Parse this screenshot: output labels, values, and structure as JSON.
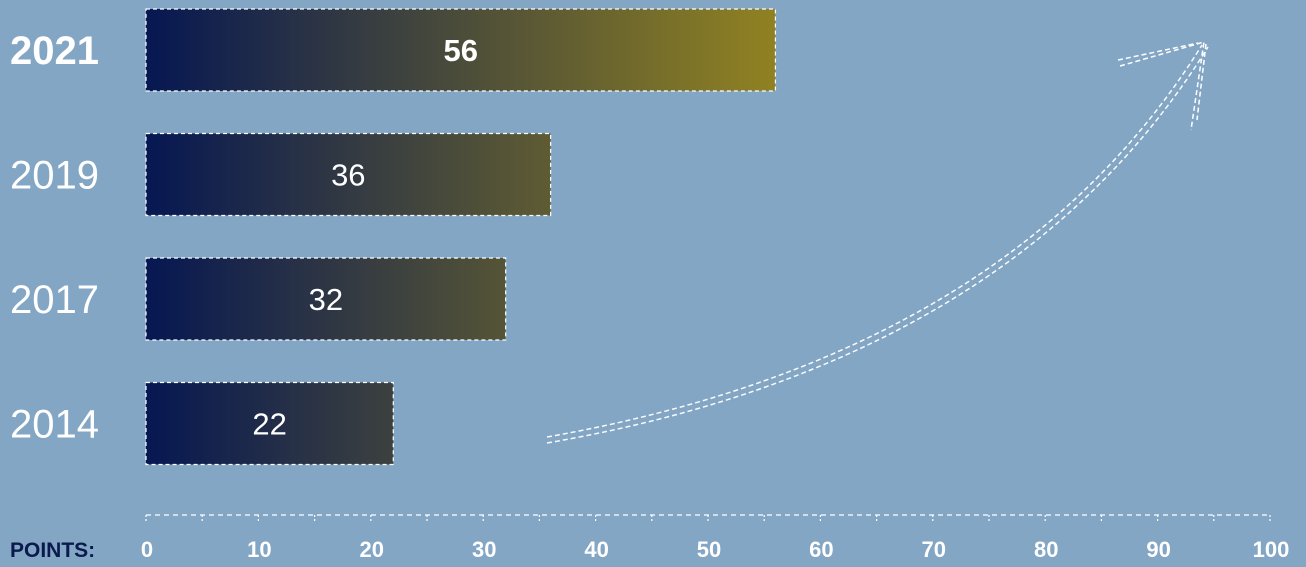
{
  "chart_data": {
    "type": "bar",
    "orientation": "horizontal",
    "categories": [
      "2021",
      "2019",
      "2017",
      "2014"
    ],
    "values": [
      56,
      36,
      32,
      22
    ],
    "highlighted_category": "2021",
    "xlabel": "POINTS:",
    "xlim": [
      0,
      100
    ],
    "xticks": [
      0,
      10,
      20,
      30,
      40,
      50,
      60,
      70,
      80,
      90,
      100
    ],
    "grid": false,
    "decoration": "dashed-arrow-rising-up-right",
    "colors": {
      "background": "#84a6c5",
      "bar_start": "#061752",
      "bar_end": "#8f8122",
      "text": "#ffffff",
      "axis_label": "#0b1a4d"
    }
  }
}
